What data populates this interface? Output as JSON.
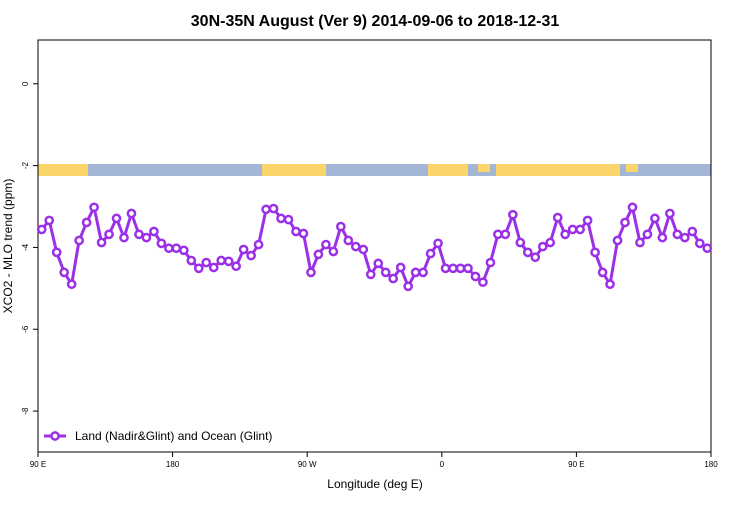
{
  "chart_data": {
    "type": "line",
    "title": "30N-35N August (Ver 9)   2014-09-06 to 2018-12-31",
    "x_label": "Longitude (deg E)",
    "y_label": "XCO2 - MLO trend (ppm)",
    "x": [
      92.5,
      97.5,
      102.5,
      107.5,
      112.5,
      117.5,
      122.5,
      127.5,
      132.5,
      137.5,
      142.5,
      147.5,
      152.5,
      157.5,
      162.5,
      167.5,
      172.5,
      177.5,
      182.5,
      187.5,
      192.5,
      197.5,
      202.5,
      207.5,
      212.5,
      217.5,
      222.5,
      227.5,
      232.5,
      237.5,
      242.5,
      247.5,
      252.5,
      257.5,
      262.5,
      267.5,
      272.5,
      277.5,
      282.5,
      287.5,
      292.5,
      297.5,
      302.5,
      307.5,
      312.5,
      317.5,
      322.5,
      327.5,
      332.5,
      337.5,
      342.5,
      347.5,
      352.5,
      357.5,
      362.5,
      367.5,
      372.5,
      377.5,
      382.5,
      387.5,
      392.5,
      397.5,
      402.5,
      407.5,
      412.5,
      417.5,
      422.5,
      427.5,
      432.5,
      437.5,
      442.5,
      447.5,
      452.5,
      457.5,
      462.5,
      467.5,
      472.5,
      477.5,
      482.5,
      487.5,
      492.5,
      497.5,
      502.5,
      507.5,
      512.5,
      517.5,
      522.5,
      527.5,
      532.5,
      537.5
    ],
    "series": [
      {
        "name": "Land (Nadir&Glint) and Ocean (Glint)",
        "color": "#9b30e6",
        "values": [
          -3.56,
          -3.34,
          -4.12,
          -4.61,
          -4.9,
          -3.83,
          -3.39,
          -3.02,
          -3.88,
          -3.68,
          -3.29,
          -3.76,
          -3.17,
          -3.68,
          -3.76,
          -3.61,
          -3.9,
          -4.02,
          -4.02,
          -4.07,
          -4.32,
          -4.51,
          -4.37,
          -4.49,
          -4.32,
          -4.34,
          -4.46,
          -4.05,
          -4.2,
          -3.93,
          -3.07,
          -3.05,
          -3.29,
          -3.32,
          -3.61,
          -3.66,
          -4.61,
          -4.17,
          -3.93,
          -4.1,
          -3.49,
          -3.83,
          -3.98,
          -4.05,
          -4.66,
          -4.39,
          -4.61,
          -4.76,
          -4.49,
          -4.95,
          -4.61,
          -4.61,
          -4.15,
          -3.9,
          -4.51,
          -4.51,
          -4.51,
          -4.51,
          -4.71,
          -4.85,
          -4.37,
          -3.68,
          -3.68,
          -3.2,
          -3.88,
          -4.12,
          -4.24,
          -3.98,
          -3.88,
          -3.27,
          -3.68,
          -3.56,
          -3.56,
          -3.34,
          -4.12,
          -4.61,
          -4.9,
          -3.83,
          -3.39,
          -3.02,
          -3.88,
          -3.68,
          -3.29,
          -3.76,
          -3.17,
          -3.68,
          -3.76,
          -3.61,
          -3.9,
          -4.02
        ]
      }
    ],
    "xlim": [
      90,
      540
    ],
    "xticks": [
      {
        "value": 90,
        "label": "90 E"
      },
      180,
      {
        "value": 270,
        "label": "90 W"
      },
      {
        "value": 360,
        "label": "0"
      },
      {
        "value": 450,
        "label": "90 E"
      },
      {
        "value": 540,
        "label": "180"
      }
    ],
    "ylim": [
      -9,
      1.07
    ],
    "yticks": [
      0,
      -2,
      -4,
      -6,
      -8
    ],
    "legend": "bottom-left"
  }
}
